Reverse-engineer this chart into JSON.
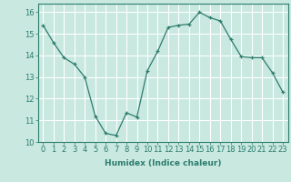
{
  "x": [
    0,
    1,
    2,
    3,
    4,
    5,
    6,
    7,
    8,
    9,
    10,
    11,
    12,
    13,
    14,
    15,
    16,
    17,
    18,
    19,
    20,
    21,
    22,
    23
  ],
  "y": [
    15.4,
    14.6,
    13.9,
    13.6,
    13.0,
    11.2,
    10.4,
    10.3,
    11.35,
    11.15,
    13.3,
    14.2,
    15.3,
    15.4,
    15.45,
    16.0,
    15.75,
    15.6,
    14.75,
    13.95,
    13.9,
    13.9,
    13.2,
    12.3
  ],
  "line_color": "#2e7d6e",
  "marker": "+",
  "bg_color": "#c8e8e0",
  "grid_color": "#ffffff",
  "xlabel": "Humidex (Indice chaleur)",
  "xlim": [
    -0.5,
    23.5
  ],
  "ylim": [
    10,
    16.4
  ],
  "yticks": [
    10,
    11,
    12,
    13,
    14,
    15,
    16
  ],
  "xticks": [
    0,
    1,
    2,
    3,
    4,
    5,
    6,
    7,
    8,
    9,
    10,
    11,
    12,
    13,
    14,
    15,
    16,
    17,
    18,
    19,
    20,
    21,
    22,
    23
  ],
  "label_fontsize": 6.5,
  "tick_fontsize": 6.0
}
